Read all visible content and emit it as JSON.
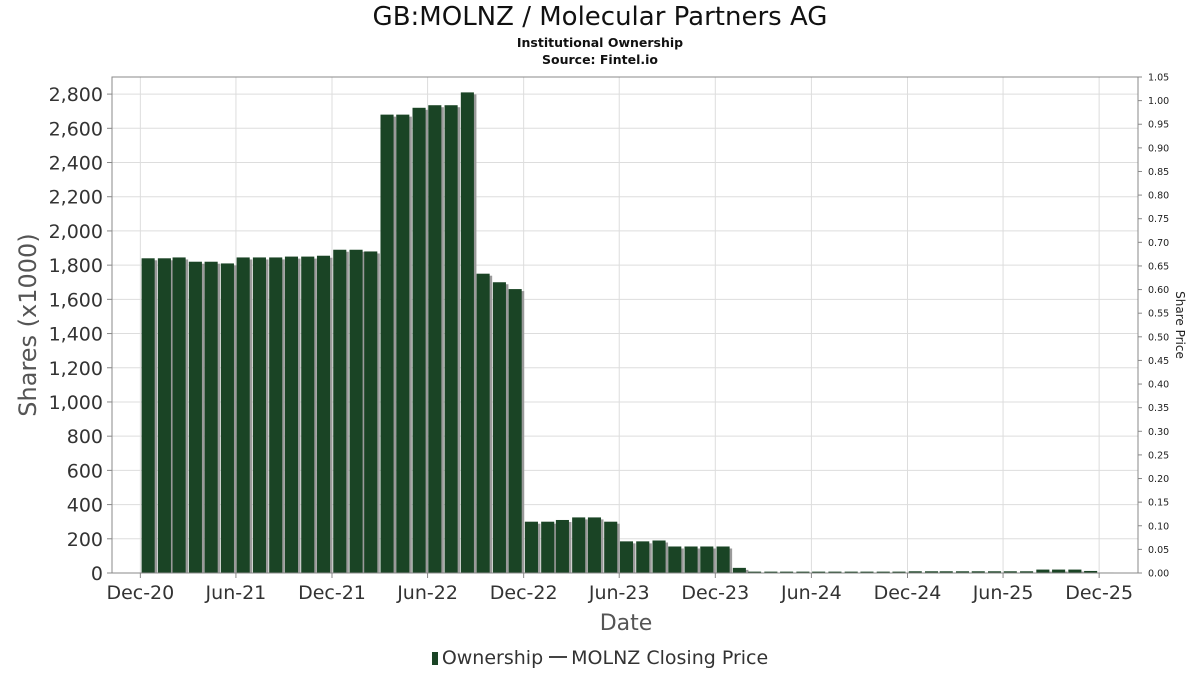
{
  "chart_data": {
    "type": "bar",
    "title": "GB:MOLNZ / Molecular Partners AG",
    "subtitle": "Institutional Ownership",
    "source": "Source: Fintel.io",
    "xlabel": "Date",
    "ylabel": "Shares (x1000)",
    "y2label": "Share Price",
    "ylim": [
      0,
      2900
    ],
    "y2lim": [
      0,
      1.05
    ],
    "yticks": [
      0,
      200,
      400,
      600,
      800,
      1000,
      1200,
      1400,
      1600,
      1800,
      2000,
      2200,
      2400,
      2600,
      2800
    ],
    "ytick_labels": [
      "0",
      "200",
      "400",
      "600",
      "800",
      "1,000",
      "1,200",
      "1,400",
      "1,600",
      "1,800",
      "2,000",
      "2,200",
      "2,400",
      "2,600",
      "2,800"
    ],
    "y2ticks": [
      0,
      0.05,
      0.1,
      0.15,
      0.2,
      0.25,
      0.3,
      0.35,
      0.4,
      0.45,
      0.5,
      0.55,
      0.6,
      0.65,
      0.7,
      0.75,
      0.8,
      0.85,
      0.9,
      0.95,
      1.0,
      1.05
    ],
    "y2tick_labels": [
      "0.00",
      "0.05",
      "0.10",
      "0.15",
      "0.20",
      "0.25",
      "0.30",
      "0.35",
      "0.40",
      "0.45",
      "0.50",
      "0.55",
      "0.60",
      "0.65",
      "0.70",
      "0.75",
      "0.80",
      "0.85",
      "0.90",
      "0.95",
      "1.00",
      "1.05"
    ],
    "xlim": [
      "2020-10-08",
      "2026-02-13"
    ],
    "xticks": [
      "2020-12-01",
      "2021-06-01",
      "2021-12-01",
      "2022-06-01",
      "2022-12-01",
      "2023-06-01",
      "2023-12-01",
      "2024-06-01",
      "2024-12-01",
      "2025-06-01",
      "2025-12-01"
    ],
    "xtick_labels": [
      "Dec-20",
      "Jun-21",
      "Dec-21",
      "Jun-22",
      "Dec-22",
      "Jun-23",
      "Dec-23",
      "Jun-24",
      "Dec-24",
      "Jun-25",
      "Dec-25"
    ],
    "grid": true,
    "legend_position": "bottom",
    "series": [
      {
        "name": "Ownership",
        "color": "#1a4425",
        "x": [
          "2020-12-31",
          "2021-01-31",
          "2021-02-28",
          "2021-03-31",
          "2021-04-30",
          "2021-05-31",
          "2021-06-30",
          "2021-07-31",
          "2021-08-31",
          "2021-09-30",
          "2021-10-31",
          "2021-11-30",
          "2021-12-31",
          "2022-01-31",
          "2022-02-28",
          "2022-03-31",
          "2022-04-30",
          "2022-05-31",
          "2022-06-30",
          "2022-07-31",
          "2022-08-31",
          "2022-09-30",
          "2022-10-31",
          "2022-11-30",
          "2022-12-31",
          "2023-01-31",
          "2023-02-28",
          "2023-03-31",
          "2023-04-30",
          "2023-05-31",
          "2023-06-30",
          "2023-07-31",
          "2023-08-31",
          "2023-09-30",
          "2023-10-31",
          "2023-11-30",
          "2023-12-31",
          "2024-01-31",
          "2024-02-29",
          "2024-03-31",
          "2024-04-30",
          "2024-05-31",
          "2024-06-30",
          "2024-07-31",
          "2024-08-31",
          "2024-09-30",
          "2024-10-31",
          "2024-11-30",
          "2024-12-31",
          "2025-01-31",
          "2025-02-28",
          "2025-03-31",
          "2025-04-30",
          "2025-05-31",
          "2025-06-30",
          "2025-07-31",
          "2025-08-31",
          "2025-09-30",
          "2025-10-31",
          "2025-11-30",
          "2025-12-31"
        ],
        "values": [
          1840,
          1840,
          1845,
          1820,
          1820,
          1810,
          1845,
          1845,
          1845,
          1850,
          1850,
          1855,
          1890,
          1890,
          1880,
          2680,
          2680,
          2720,
          2735,
          2735,
          2810,
          1750,
          1700,
          1660,
          300,
          300,
          310,
          325,
          325,
          300,
          185,
          185,
          190,
          155,
          155,
          155,
          155,
          30,
          8,
          8,
          8,
          8,
          8,
          8,
          8,
          8,
          8,
          8,
          10,
          10,
          10,
          10,
          10,
          10,
          10,
          10,
          20,
          20,
          20,
          12,
          3
        ]
      },
      {
        "name": "MOLNZ Closing Price",
        "color": "#444444",
        "x": [],
        "values": []
      }
    ]
  },
  "legend": {
    "ownership_label": "Ownership",
    "price_label": "MOLNZ Closing Price"
  }
}
